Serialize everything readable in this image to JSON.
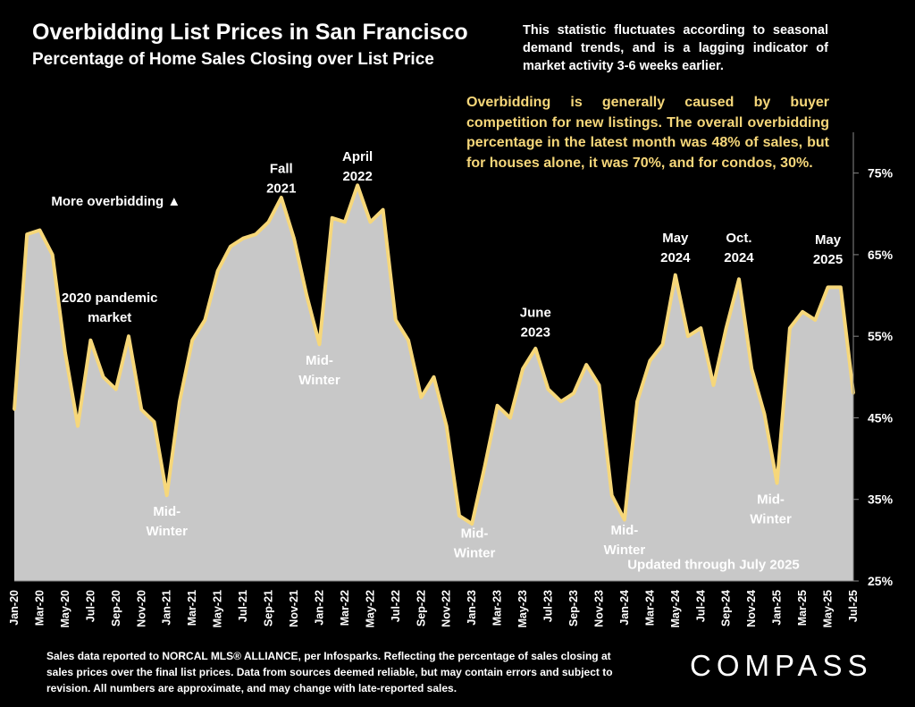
{
  "header": {
    "title": "Overbidding List Prices in San Francisco",
    "subtitle": "Percentage of Home Sales Closing over List Price"
  },
  "notes": {
    "seasonal": "This statistic fluctuates according to seasonal demand trends, and is a lagging indicator of market activity 3-6 weeks earlier.",
    "overbidding": "Overbidding is generally caused by buyer competition for new listings. The overall overbidding percentage in the latest month was 48% of sales, but for houses alone, it was 70%, and for condos, 30%."
  },
  "footer": {
    "source": "Sales data reported to NORCAL MLS® ALLIANCE, per Infosparks. Reflecting the percentage of sales closing at sales prices over the final list prices. Data from sources deemed reliable, but may contain errors and subject to revision. All numbers are approximate, and may change with late-reported sales.",
    "logo": "COMPASS"
  },
  "chart_data": {
    "type": "area",
    "ylim": [
      25,
      80
    ],
    "ytick_values": [
      25,
      35,
      45,
      55,
      65,
      75
    ],
    "ytick_labels": [
      "25%",
      "35%",
      "45%",
      "55%",
      "65%",
      "75%"
    ],
    "x_tick_labels": [
      "Jan-20",
      "Mar-20",
      "May-20",
      "Jul-20",
      "Sep-20",
      "Nov-20",
      "Jan-21",
      "Mar-21",
      "May-21",
      "Jul-21",
      "Sep-21",
      "Nov-21",
      "Jan-22",
      "Mar-22",
      "May-22",
      "Jul-22",
      "Sep-22",
      "Nov-22",
      "Jan-23",
      "Mar-23",
      "May-23",
      "Jul-23",
      "Sep-23",
      "Nov-23",
      "Jan-24",
      "Mar-24",
      "May-24",
      "Jul-24",
      "Sep-24",
      "Nov-24",
      "Jan-25",
      "Mar-25",
      "May-25",
      "Jul-25"
    ],
    "series": [
      {
        "values": [
          46,
          67.5,
          68,
          65,
          53,
          44,
          54.5,
          50,
          48.5,
          55,
          46,
          44.5,
          35.5,
          47,
          54.5,
          57,
          63,
          66,
          67,
          67.5,
          69,
          72,
          67,
          60,
          54,
          69.5,
          69,
          73.5,
          69,
          70.5,
          57,
          54.5,
          47.5,
          50,
          44,
          33,
          32,
          39,
          46.5,
          45,
          51,
          53.5,
          48.5,
          47,
          48,
          51.5,
          49,
          35.5,
          32.5,
          47,
          52,
          54,
          62.5,
          55,
          56,
          49,
          56,
          62,
          51,
          45.5,
          37,
          56,
          58,
          57,
          61,
          61,
          48
        ],
        "color": "#f6d77a",
        "fill": "#c8c8c8"
      }
    ],
    "annotations": [
      {
        "lines": [
          "More overbidding ▲"
        ],
        "index": 8,
        "value": 71,
        "anchor": "middle"
      },
      {
        "lines": [
          "Fall",
          "2021"
        ],
        "index": 21,
        "value": 75,
        "anchor": "middle"
      },
      {
        "lines": [
          "April",
          "2022"
        ],
        "index": 27,
        "value": 76.5,
        "anchor": "middle"
      },
      {
        "lines": [
          "2020 pandemic",
          "market"
        ],
        "index": 7.5,
        "value": 59.2,
        "anchor": "middle"
      },
      {
        "lines": [
          "Mid-",
          "Winter"
        ],
        "index": 12,
        "value": 33,
        "anchor": "middle"
      },
      {
        "lines": [
          "Mid-",
          "Winter"
        ],
        "index": 24,
        "value": 51.5,
        "anchor": "middle"
      },
      {
        "lines": [
          "June",
          "2023"
        ],
        "index": 41,
        "value": 57.4,
        "anchor": "middle"
      },
      {
        "lines": [
          "Mid-",
          "Winter"
        ],
        "index": 36.2,
        "value": 30.3,
        "anchor": "middle"
      },
      {
        "lines": [
          "Mid-",
          "Winter"
        ],
        "index": 48,
        "value": 30.7,
        "anchor": "middle"
      },
      {
        "lines": [
          "May",
          "2024"
        ],
        "index": 52,
        "value": 66.5,
        "anchor": "middle"
      },
      {
        "lines": [
          "Oct.",
          "2024"
        ],
        "index": 57,
        "value": 66.5,
        "anchor": "middle"
      },
      {
        "lines": [
          "May",
          "2025"
        ],
        "index": 64,
        "value": 66.3,
        "anchor": "middle"
      },
      {
        "lines": [
          "Mid-",
          "Winter"
        ],
        "index": 59.5,
        "value": 34.5,
        "anchor": "middle"
      },
      {
        "lines": [
          "Updated through July 2025"
        ],
        "index": 55,
        "value": 26.5,
        "anchor": "middle"
      }
    ]
  }
}
